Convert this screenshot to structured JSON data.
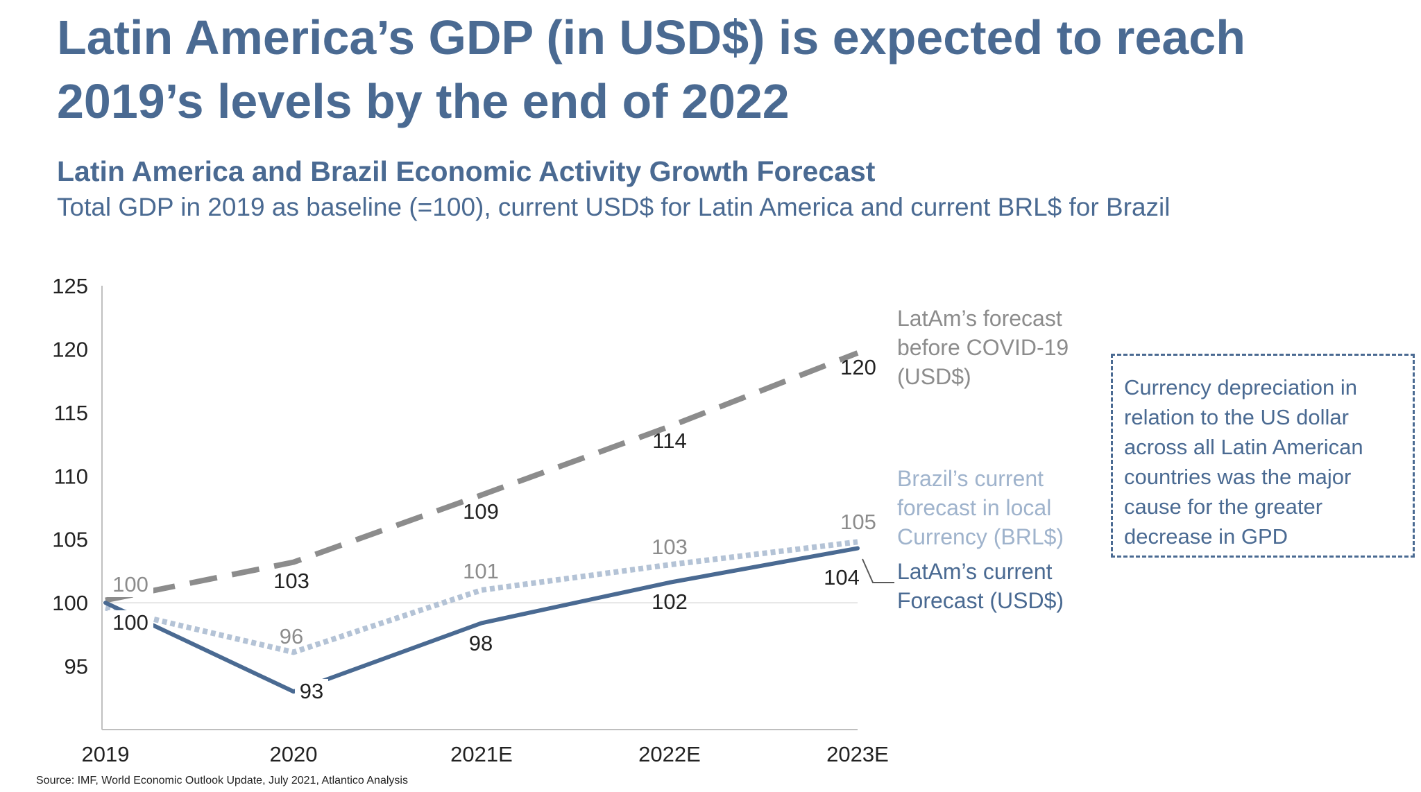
{
  "title": "Latin America’s GDP (in USD$) is expected to reach 2019’s levels by the end of 2022",
  "subtitle": "Latin America and Brazil Economic Activity Growth Forecast",
  "subtitle2": "Total GDP in 2019 as baseline (=100), current USD$ for Latin America and current BRL$ for Brazil",
  "callout": "Currency depreciation in relation to the US dollar across all Latin American countries was the major cause for the greater decrease in GPD",
  "source": "Source: IMF, World Economic Outlook Update, July 2021, Atlantico Analysis",
  "colors": {
    "precovid": "#8c8c8c",
    "brazil": "#b4c3d6",
    "latam": "#4a6a92",
    "text": "#222222"
  },
  "chart_data": {
    "type": "line",
    "categories": [
      "2019",
      "2020",
      "2021E",
      "2022E",
      "2023E"
    ],
    "ylim": [
      90,
      125
    ],
    "yticks": [
      95,
      100,
      105,
      110,
      115,
      120,
      125
    ],
    "grid": false,
    "series": [
      {
        "key": "precovid",
        "name": "LatAm’s forecast before COVID-19 (USD$)",
        "name_lines": [
          "LatAm’s forecast",
          "before COVID-19",
          "(USD$)"
        ],
        "values": [
          100,
          103,
          109,
          114,
          120
        ],
        "plot_values": [
          100.2,
          103.2,
          108.5,
          113.9,
          119.7
        ],
        "labels": [
          "100",
          "103",
          "109",
          "114",
          "120"
        ],
        "style": "dashed"
      },
      {
        "key": "brazil",
        "name": "Brazil’s current forecast in local Currency (BRL$)",
        "name_lines": [
          "Brazil’s current",
          "forecast in local",
          "Currency (BRL$)"
        ],
        "values": [
          100,
          96,
          101,
          103,
          105
        ],
        "plot_values": [
          99.6,
          96.1,
          101.0,
          103.0,
          104.8
        ],
        "labels": [
          "",
          "96",
          "101",
          "103",
          "105"
        ],
        "style": "dotted"
      },
      {
        "key": "latam",
        "name": "LatAm’s current Forecast (USD$)",
        "name_lines": [
          "LatAm’s current",
          "Forecast (USD$)"
        ],
        "values": [
          100,
          93,
          98,
          102,
          104
        ],
        "plot_values": [
          100.0,
          93.0,
          98.4,
          101.6,
          104.3
        ],
        "labels": [
          "100",
          "93",
          "98",
          "102",
          "104"
        ],
        "style": "solid"
      }
    ]
  }
}
